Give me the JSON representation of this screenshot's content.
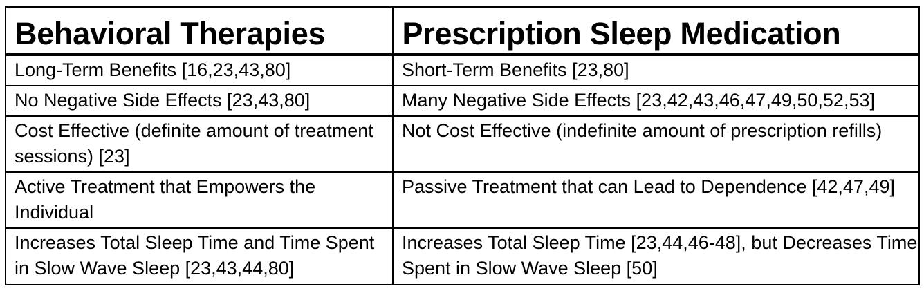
{
  "table": {
    "headers": [
      "Behavioral Therapies",
      "Prescription Sleep Medication"
    ],
    "rows": [
      [
        "Long-Term Benefits [16,23,43,80]",
        "Short-Term Benefits [23,80]"
      ],
      [
        "No Negative Side Effects [23,43,80]",
        "Many Negative Side Effects [23,42,43,46,47,49,50,52,53]"
      ],
      [
        "Cost Effective (definite amount of treatment sessions) [23]",
        "Not Cost Effective (indefinite amount of prescription refills)"
      ],
      [
        "Active Treatment that Empowers the Individual",
        "Passive Treatment that can Lead to Dependence [42,47,49]"
      ],
      [
        "Increases Total Sleep Time and Time Spent in Slow Wave Sleep [23,43,44,80]",
        "Increases Total Sleep Time [23,44,46-48], but Decreases Time Spent in Slow Wave Sleep [50]"
      ]
    ]
  }
}
